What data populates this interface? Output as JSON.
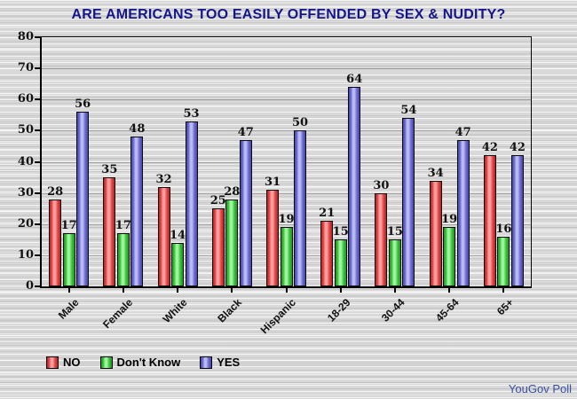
{
  "credit": "YouGov Poll",
  "colors": {
    "title": "#15158c",
    "credit": "#3a4fa5",
    "grid": "#9b9b9b"
  },
  "chart_data": {
    "type": "bar",
    "title": "ARE AMERICANS TOO EASILY OFFENDED BY SEX & NUDITY?",
    "categories": [
      "Male",
      "Female",
      "White",
      "Black",
      "Hispanic",
      "18-29",
      "30-44",
      "45-64",
      "65+"
    ],
    "series": [
      {
        "name": "NO",
        "edge": "#b22323",
        "main": "#e14848",
        "light": "#ffa0a0",
        "values": [
          28,
          35,
          32,
          25,
          31,
          21,
          30,
          34,
          42
        ]
      },
      {
        "name": "Don't Know",
        "edge": "#1f9420",
        "main": "#3cc43c",
        "light": "#a2f5a2",
        "values": [
          17,
          17,
          14,
          28,
          19,
          15,
          15,
          19,
          16
        ]
      },
      {
        "name": "YES",
        "edge": "#4747a6",
        "main": "#6c6cd2",
        "light": "#bcbcf2",
        "values": [
          56,
          48,
          53,
          47,
          50,
          64,
          54,
          47,
          42
        ]
      }
    ],
    "xlabel": "",
    "ylabel": "",
    "ylim": [
      0,
      80
    ],
    "yticks": [
      0,
      10,
      20,
      30,
      40,
      50,
      60,
      70,
      80
    ],
    "grid": true,
    "legend_position": "bottom-left",
    "bar_value_labels": true
  }
}
